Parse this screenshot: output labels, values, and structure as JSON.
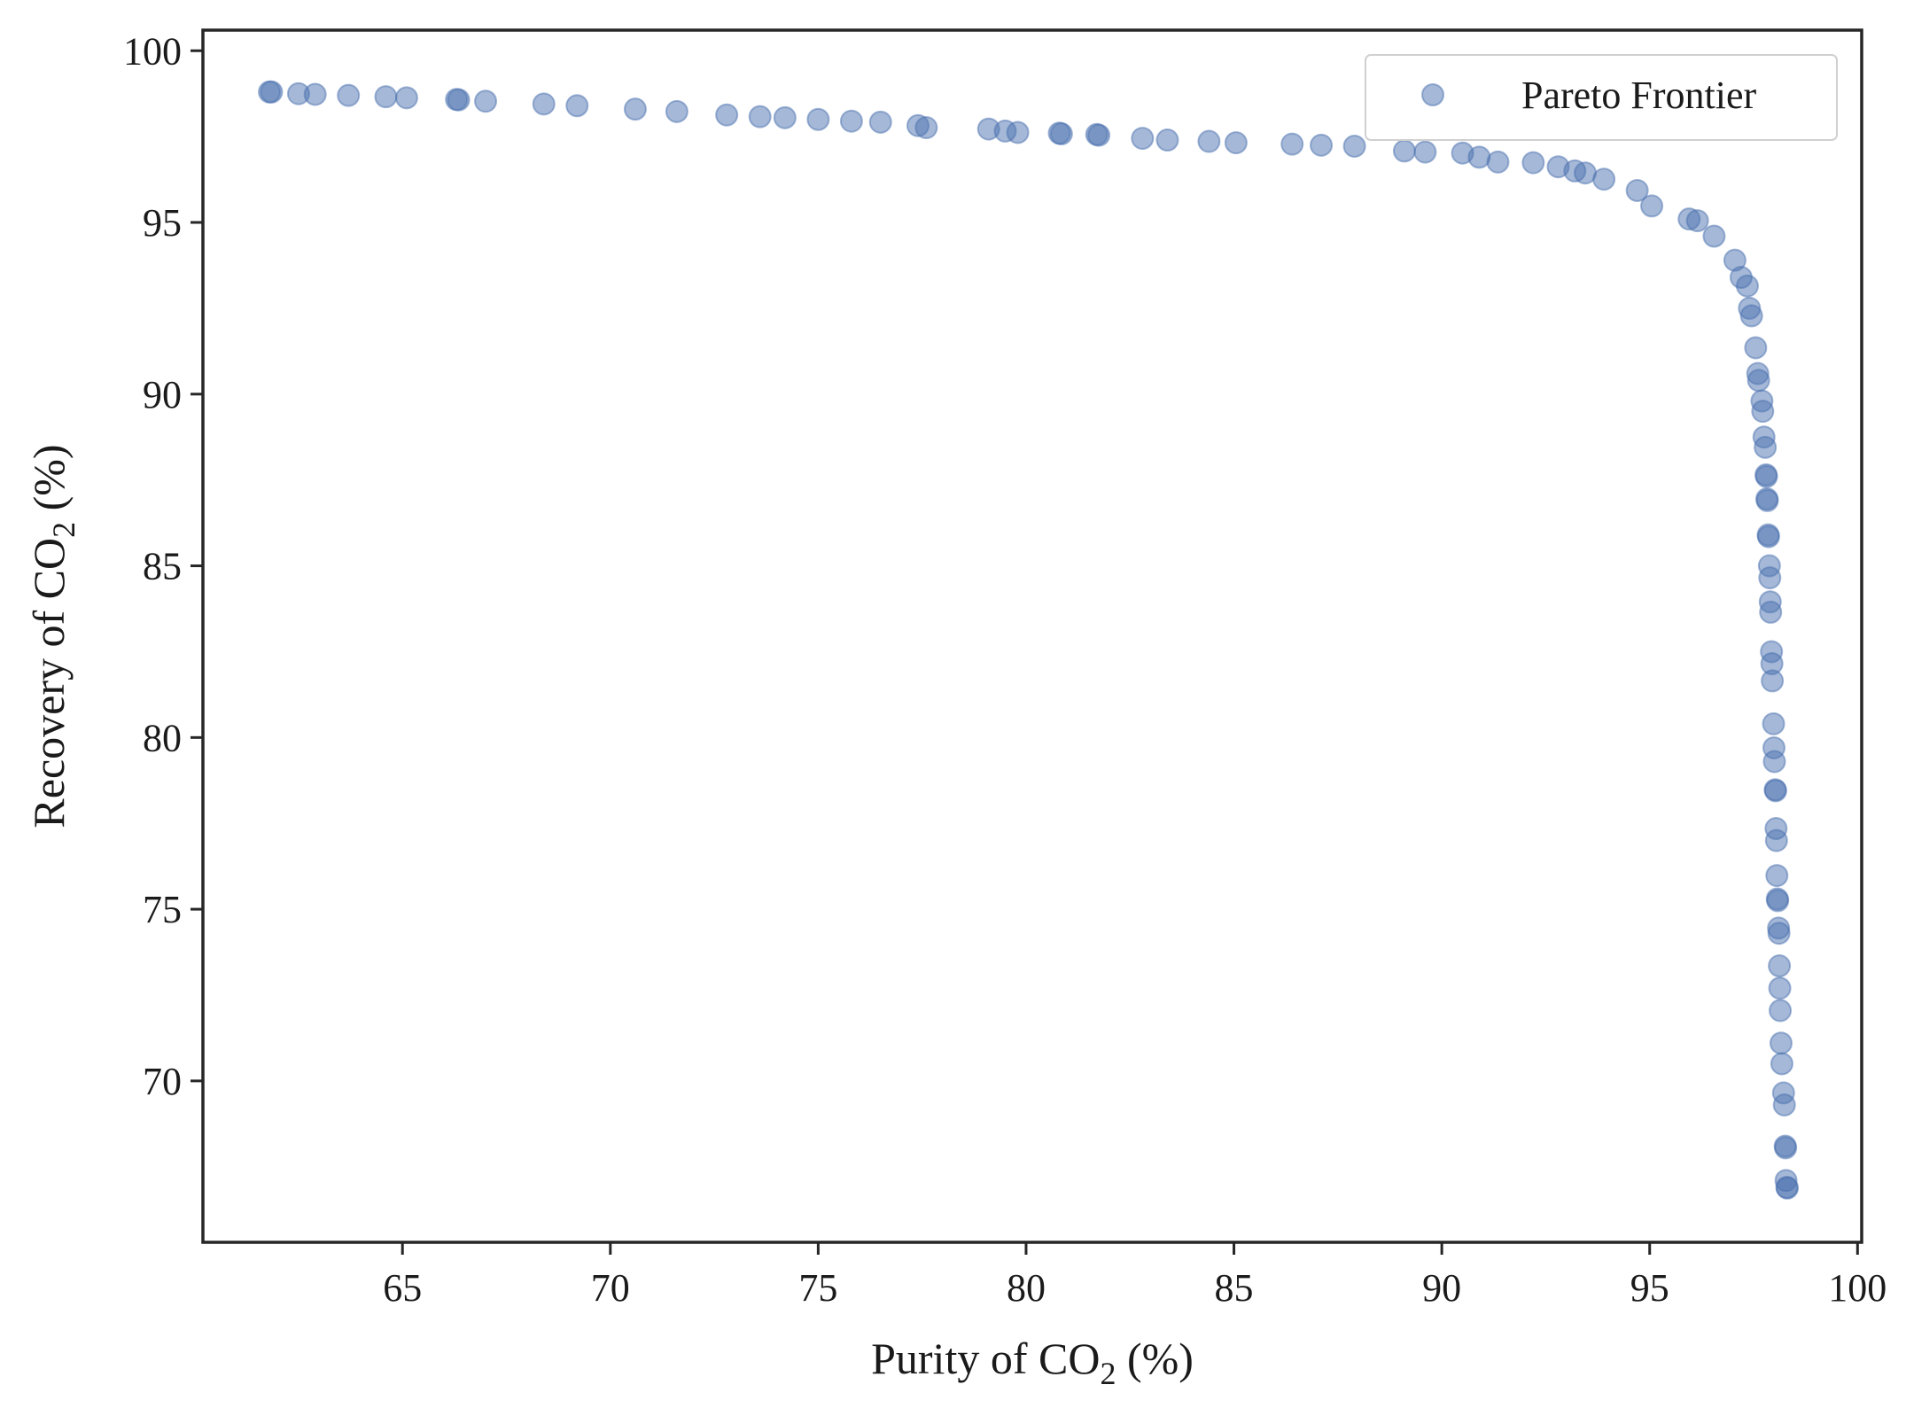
{
  "chart_data": {
    "type": "scatter",
    "xlabel": "Purity of CO2 (%)",
    "ylabel": "Recovery of CO2 (%)",
    "xlim": [
      60.2,
      100.1
    ],
    "ylim": [
      65.3,
      100.6
    ],
    "xticks": [
      65,
      70,
      75,
      80,
      85,
      90,
      95,
      100
    ],
    "yticks": [
      70,
      75,
      80,
      85,
      90,
      95,
      100
    ],
    "grid": false,
    "legend_position": "top-right",
    "marker_color": "#4c72b0",
    "marker_alpha": 0.5,
    "series": [
      {
        "name": "Pareto Frontier",
        "points": [
          [
            61.8,
            98.8
          ],
          [
            61.85,
            98.8
          ],
          [
            62.5,
            98.75
          ],
          [
            62.9,
            98.73
          ],
          [
            63.7,
            98.7
          ],
          [
            64.6,
            98.66
          ],
          [
            65.1,
            98.63
          ],
          [
            66.3,
            98.58
          ],
          [
            66.35,
            98.57
          ],
          [
            67.0,
            98.53
          ],
          [
            68.4,
            98.45
          ],
          [
            69.2,
            98.4
          ],
          [
            70.6,
            98.3
          ],
          [
            71.6,
            98.23
          ],
          [
            72.8,
            98.13
          ],
          [
            73.6,
            98.08
          ],
          [
            74.2,
            98.05
          ],
          [
            75.0,
            98.0
          ],
          [
            75.8,
            97.95
          ],
          [
            76.5,
            97.92
          ],
          [
            77.4,
            97.82
          ],
          [
            77.6,
            97.76
          ],
          [
            79.1,
            97.72
          ],
          [
            79.5,
            97.66
          ],
          [
            79.8,
            97.62
          ],
          [
            80.8,
            97.6
          ],
          [
            80.85,
            97.58
          ],
          [
            81.7,
            97.56
          ],
          [
            81.75,
            97.54
          ],
          [
            82.8,
            97.45
          ],
          [
            83.4,
            97.4
          ],
          [
            84.4,
            97.36
          ],
          [
            85.05,
            97.32
          ],
          [
            86.4,
            97.28
          ],
          [
            87.1,
            97.25
          ],
          [
            87.9,
            97.22
          ],
          [
            89.1,
            97.08
          ],
          [
            89.6,
            97.05
          ],
          [
            90.5,
            97.02
          ],
          [
            90.9,
            96.9
          ],
          [
            91.35,
            96.76
          ],
          [
            92.2,
            96.74
          ],
          [
            92.8,
            96.62
          ],
          [
            93.2,
            96.5
          ],
          [
            93.45,
            96.44
          ],
          [
            93.9,
            96.26
          ],
          [
            94.7,
            95.93
          ],
          [
            95.05,
            95.48
          ],
          [
            95.95,
            95.1
          ],
          [
            96.15,
            95.05
          ],
          [
            96.55,
            94.6
          ],
          [
            97.05,
            93.9
          ],
          [
            97.2,
            93.4
          ],
          [
            97.35,
            93.15
          ],
          [
            97.4,
            92.5
          ],
          [
            97.45,
            92.28
          ],
          [
            97.55,
            91.35
          ],
          [
            97.6,
            90.6
          ],
          [
            97.62,
            90.4
          ],
          [
            97.7,
            89.8
          ],
          [
            97.72,
            89.5
          ],
          [
            97.75,
            88.75
          ],
          [
            97.78,
            88.45
          ],
          [
            97.8,
            87.65
          ],
          [
            97.81,
            87.6
          ],
          [
            97.82,
            86.95
          ],
          [
            97.83,
            86.9
          ],
          [
            97.85,
            85.9
          ],
          [
            97.86,
            85.85
          ],
          [
            97.88,
            85.0
          ],
          [
            97.89,
            84.65
          ],
          [
            97.9,
            83.95
          ],
          [
            97.91,
            83.65
          ],
          [
            97.93,
            82.5
          ],
          [
            97.94,
            82.15
          ],
          [
            97.95,
            81.65
          ],
          [
            97.98,
            80.4
          ],
          [
            97.99,
            79.7
          ],
          [
            98.0,
            79.3
          ],
          [
            98.02,
            78.48
          ],
          [
            98.03,
            78.45
          ],
          [
            98.04,
            77.35
          ],
          [
            98.05,
            77.0
          ],
          [
            98.06,
            75.98
          ],
          [
            98.07,
            75.3
          ],
          [
            98.08,
            75.25
          ],
          [
            98.1,
            74.45
          ],
          [
            98.11,
            74.3
          ],
          [
            98.12,
            73.35
          ],
          [
            98.13,
            72.7
          ],
          [
            98.14,
            72.05
          ],
          [
            98.16,
            71.1
          ],
          [
            98.18,
            70.5
          ],
          [
            98.22,
            69.65
          ],
          [
            98.24,
            69.3
          ],
          [
            98.26,
            68.1
          ],
          [
            98.27,
            68.05
          ],
          [
            98.28,
            67.1
          ],
          [
            98.3,
            66.9
          ],
          [
            98.31,
            66.88
          ]
        ]
      }
    ]
  }
}
